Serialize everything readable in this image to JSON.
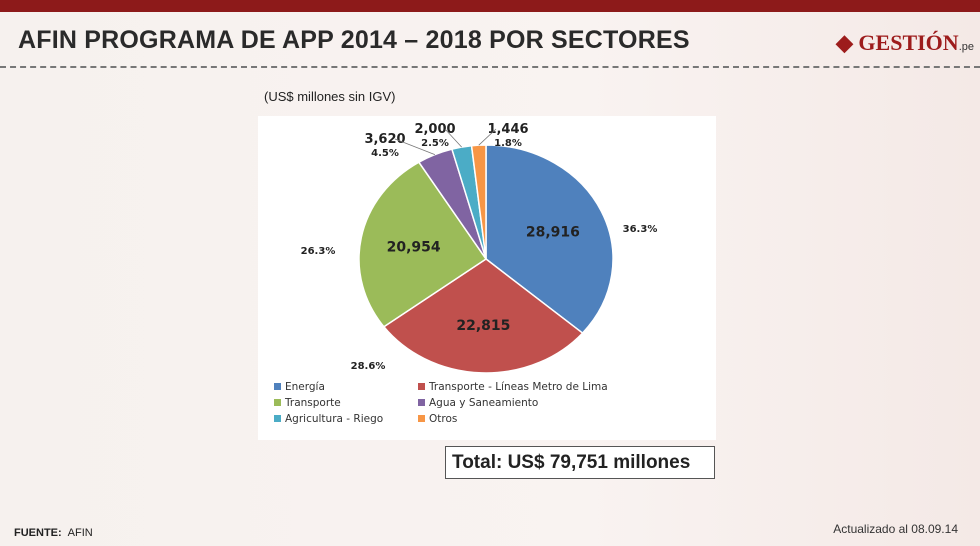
{
  "header": {
    "title": "AFIN PROGRAMA DE APP 2014 – 2018 POR SECTORES",
    "logo": "GESTIÓN.pe"
  },
  "footer": {
    "source_label": "FUENTE:",
    "source": "AFIN",
    "updated": "Actualizado al 08.09.14"
  },
  "total": "Total: US$ 79,751 millones",
  "chart_data": {
    "type": "pie",
    "subtitle": "(US$ millones sin IGV)",
    "slices": [
      {
        "name": "Energía",
        "value": 28916,
        "label": "28,916",
        "pct": "36.3%",
        "color": "#4f81bd"
      },
      {
        "name": "Transporte - Líneas Metro de Lima",
        "value": 22815,
        "label": "22,815",
        "pct": "28.6%",
        "color": "#c0504d"
      },
      {
        "name": "Transporte",
        "value": 20954,
        "label": "20,954",
        "pct": "26.3%",
        "color": "#9bbb59"
      },
      {
        "name": "Agua y Saneamiento",
        "value": 3620,
        "label": "3,620",
        "pct": "4.5%",
        "color": "#8064a2"
      },
      {
        "name": "Agricultura - Riego",
        "value": 2000,
        "label": "2,000",
        "pct": "2.5%",
        "color": "#4bacc6"
      },
      {
        "name": "Otros",
        "value": 1446,
        "label": "1,446",
        "pct": "1.8%",
        "color": "#f79646"
      }
    ],
    "legend": "bottom"
  }
}
